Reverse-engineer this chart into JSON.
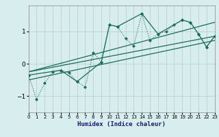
{
  "xlabel": "Humidex (Indice chaleur)",
  "ylabel": "",
  "background_color": "#d8eeee",
  "grid_color": "#b8d8d8",
  "line_color": "#1a6a5a",
  "xlim": [
    0,
    23
  ],
  "ylim": [
    -1.5,
    1.8
  ],
  "yticks": [
    -1,
    0,
    1
  ],
  "xticks": [
    0,
    1,
    2,
    3,
    4,
    5,
    6,
    7,
    8,
    9,
    10,
    11,
    12,
    13,
    14,
    15,
    16,
    17,
    18,
    19,
    20,
    21,
    22,
    23
  ],
  "series1_x": [
    0,
    1,
    2,
    3,
    4,
    5,
    6,
    7,
    8,
    9,
    10,
    11,
    12,
    13,
    14,
    15,
    16,
    17,
    18,
    19,
    20,
    21,
    22,
    23
  ],
  "series1_y": [
    -0.35,
    -1.1,
    -0.6,
    -0.25,
    -0.2,
    -0.28,
    -0.55,
    -0.72,
    0.35,
    0.05,
    1.2,
    1.15,
    0.78,
    0.55,
    1.55,
    0.72,
    0.92,
    1.0,
    1.2,
    1.35,
    1.28,
    0.92,
    0.52,
    0.85
  ],
  "series2_x": [
    0,
    4,
    6,
    9,
    10,
    11,
    14,
    16,
    19,
    20,
    21,
    22,
    23
  ],
  "series2_y": [
    -0.35,
    -0.2,
    -0.55,
    0.05,
    1.2,
    1.15,
    1.55,
    0.92,
    1.35,
    1.28,
    0.92,
    0.52,
    0.85
  ],
  "trend1_x": [
    0,
    23
  ],
  "trend1_y": [
    -0.25,
    1.28
  ],
  "trend2_x": [
    0,
    23
  ],
  "trend2_y": [
    -0.25,
    0.85
  ],
  "trend3_x": [
    0,
    23
  ],
  "trend3_y": [
    -0.5,
    0.72
  ]
}
